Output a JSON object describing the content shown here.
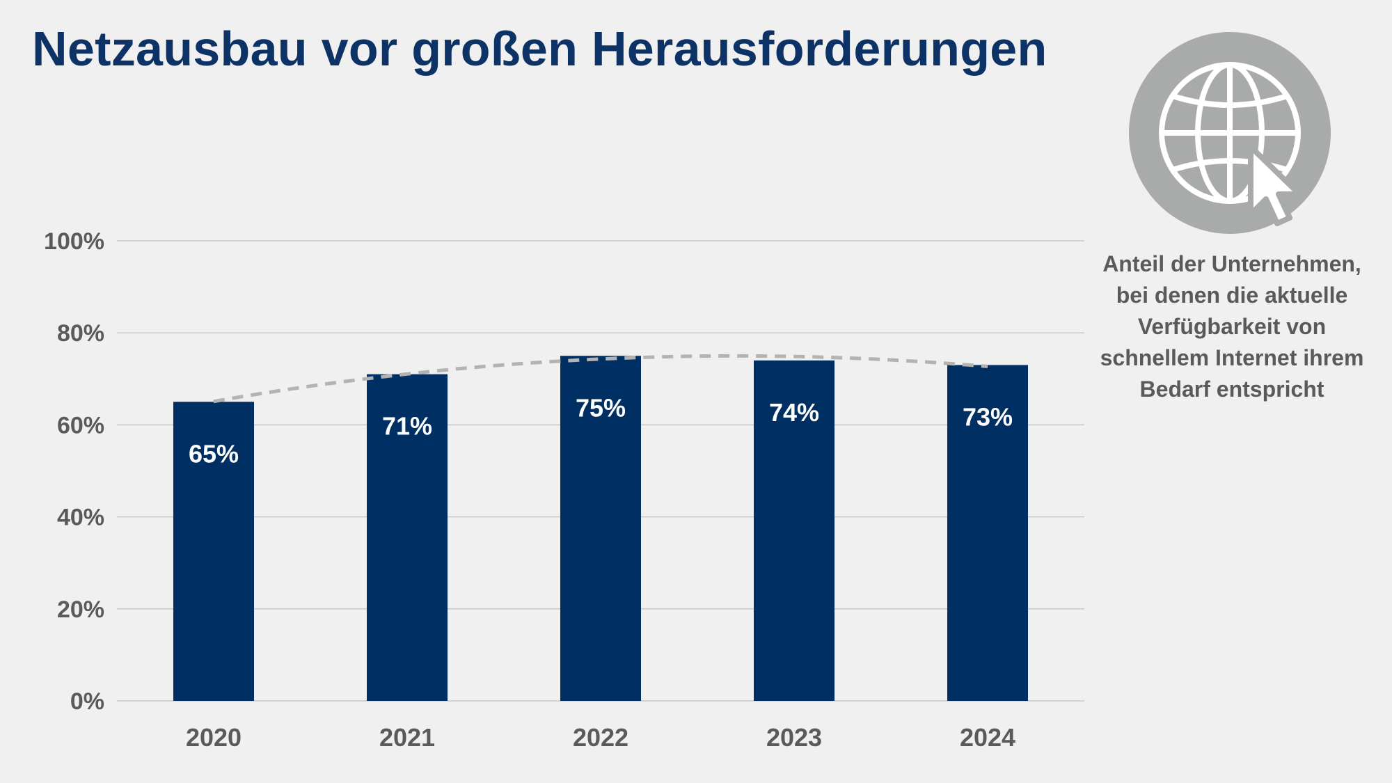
{
  "title": "Netzausbau vor großen Herausforderungen",
  "caption_lines": [
    "Anteil der Unternehmen,",
    "bei denen die aktuelle",
    "Verfügbarkeit von",
    "schnellem Internet ihrem",
    "Bedarf entspricht"
  ],
  "icon": "globe-cursor-icon",
  "colors": {
    "bar": "#003063",
    "title": "#0d3366",
    "trend": "#b3b3b3",
    "icon_circle": "#a9abab"
  },
  "chart_data": {
    "type": "bar",
    "categories": [
      "2020",
      "2021",
      "2022",
      "2023",
      "2024"
    ],
    "values": [
      65,
      71,
      75,
      74,
      73
    ],
    "value_labels": [
      "65%",
      "71%",
      "75%",
      "74%",
      "73%"
    ],
    "trend_line": "dashed",
    "ylim": [
      0,
      100
    ],
    "yticks": [
      0,
      20,
      40,
      60,
      80,
      100
    ],
    "ytick_labels": [
      "0%",
      "20%",
      "40%",
      "60%",
      "80%",
      "100%"
    ],
    "grid": true
  }
}
